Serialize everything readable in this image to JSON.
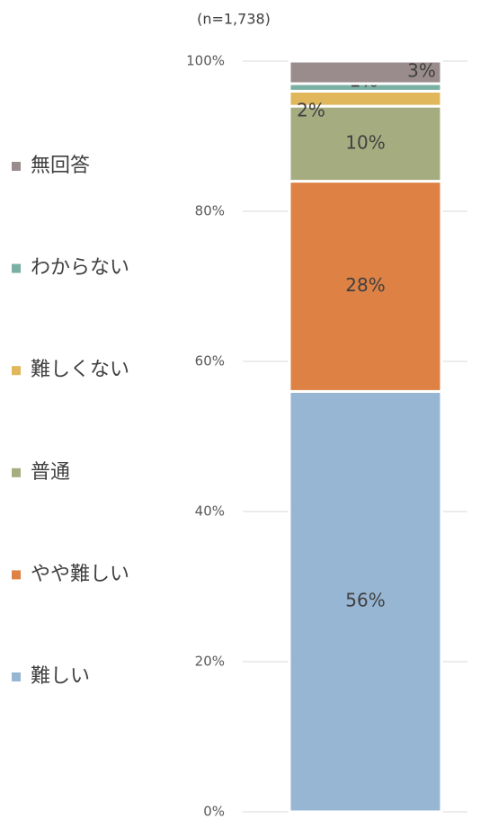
{
  "chart_data": {
    "type": "stacked_bar",
    "subtitle": "(n=1,738)",
    "categories": [
      null
    ],
    "series": [
      {
        "name": "難しい",
        "color": "#97b6d4",
        "values": [
          56
        ],
        "value_labels": [
          "56%"
        ]
      },
      {
        "name": "やや難しい",
        "color": "#de8144",
        "values": [
          28
        ],
        "value_labels": [
          "28%"
        ]
      },
      {
        "name": "普通",
        "color": "#a5ad80",
        "values": [
          10
        ],
        "value_labels": [
          "10%"
        ]
      },
      {
        "name": "難しくない",
        "color": "#e0b75a",
        "values": [
          2
        ],
        "value_labels": [
          "2%"
        ]
      },
      {
        "name": "わからない",
        "color": "#7aafa3",
        "values": [
          1
        ],
        "value_labels": [
          "1%"
        ]
      },
      {
        "name": "無回答",
        "color": "#9a8c8c",
        "values": [
          3
        ],
        "value_labels": [
          "3%"
        ]
      }
    ],
    "ylim": [
      0,
      100
    ],
    "yticks": [
      {
        "value": 0,
        "label": "0%"
      },
      {
        "value": 20,
        "label": "20%"
      },
      {
        "value": 40,
        "label": "40%"
      },
      {
        "value": 60,
        "label": "60%"
      },
      {
        "value": 80,
        "label": "80%"
      },
      {
        "value": 100,
        "label": "100%"
      }
    ],
    "grid": true,
    "legend": "left"
  }
}
